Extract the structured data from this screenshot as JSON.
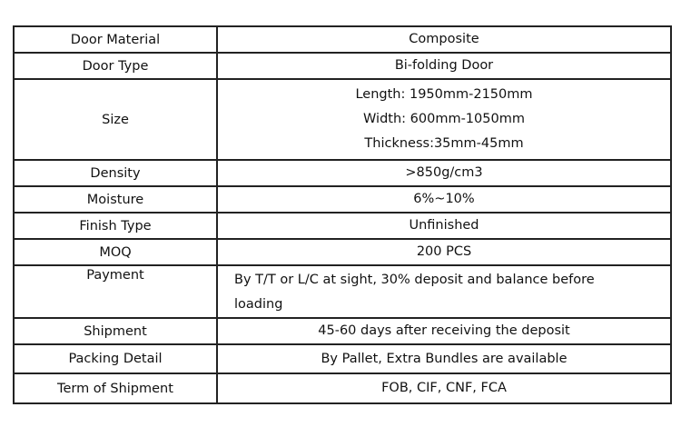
{
  "rows": [
    {
      "label": "Door Material",
      "value": [
        "Composite"
      ]
    },
    {
      "label": "Door Type",
      "value": [
        "Bi-folding Door"
      ]
    },
    {
      "label": "Size",
      "value": [
        "Length: 1950mm-2150mm",
        "Width: 600mm-1050mm",
        "Thickness:35mm-45mm"
      ]
    },
    {
      "label": "Density",
      "value": [
        ">850g/cm3"
      ]
    },
    {
      "label": "Moisture",
      "value": [
        "6%~10%"
      ]
    },
    {
      "label": "Finish Type",
      "value": [
        "Unfinished"
      ]
    },
    {
      "label": "MOQ",
      "value": [
        "200 PCS"
      ]
    },
    {
      "label": "Payment",
      "value": [
        "By T/T or L/C at sight, 30% deposit and balance before",
        "loading"
      ]
    },
    {
      "label": "Shipment",
      "value": [
        "45-60 days after receiving the deposit"
      ]
    },
    {
      "label": "Packing Detail",
      "value": [
        "By Pallet, Extra Bundles are available"
      ]
    },
    {
      "label": "Term of Shipment",
      "value": [
        "FOB, CIF, CNF, FCA"
      ]
    }
  ]
}
